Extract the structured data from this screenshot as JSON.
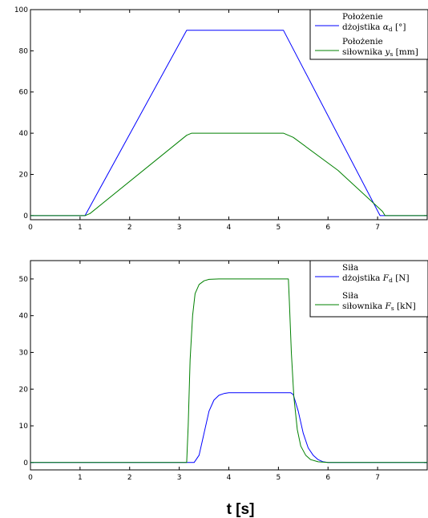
{
  "figure": {
    "xlabel": "t [s]"
  },
  "chart_data": [
    {
      "type": "line",
      "xlim": [
        0,
        8
      ],
      "ylim": [
        -2,
        100
      ],
      "xticks": [
        "0",
        "1",
        "2",
        "3",
        "4",
        "5",
        "6",
        "7"
      ],
      "yticks": [
        "0",
        "20",
        "40",
        "60",
        "80",
        "100"
      ],
      "legend_placement": "top-right",
      "series": [
        {
          "name_line1": "Położenie",
          "name_line2": "dżojstika α_d [°]",
          "color": "#0000ff",
          "x": [
            0,
            1.1,
            3.15,
            5.1,
            7.05,
            7.15,
            8
          ],
          "values": [
            0,
            0,
            90,
            90,
            0,
            0,
            0
          ]
        },
        {
          "name_line1": "Położenie",
          "name_line2": "siłownika y_s [mm]",
          "color": "#008000",
          "x": [
            0,
            1.1,
            1.2,
            3.15,
            3.25,
            5.1,
            5.3,
            6.2,
            7.1,
            7.15,
            8
          ],
          "values": [
            0,
            0,
            1,
            39,
            40,
            40,
            38,
            22,
            2,
            0,
            0
          ]
        }
      ]
    },
    {
      "type": "line",
      "xlim": [
        0,
        8
      ],
      "ylim": [
        -2,
        55
      ],
      "xticks": [
        "0",
        "1",
        "2",
        "3",
        "4",
        "5",
        "6",
        "7"
      ],
      "yticks": [
        "0",
        "10",
        "20",
        "30",
        "40",
        "50"
      ],
      "legend_placement": "top-right",
      "series": [
        {
          "name_line1": "Siła",
          "name_line2": "dżojstika F_d [N]",
          "color": "#0000ff",
          "x": [
            0,
            3.3,
            3.4,
            3.5,
            3.6,
            3.7,
            3.8,
            3.9,
            4.0,
            4.2,
            5.25,
            5.3,
            5.4,
            5.5,
            5.6,
            5.7,
            5.8,
            5.9,
            6.0,
            8
          ],
          "values": [
            0,
            0,
            2,
            8,
            14,
            17,
            18.3,
            18.8,
            19,
            19,
            19,
            18.5,
            14,
            8,
            4,
            2,
            0.8,
            0.2,
            0,
            0
          ]
        },
        {
          "name_line1": "Siła",
          "name_line2": "siłownika F_s [kN]",
          "color": "#008000",
          "x": [
            0,
            3.15,
            3.18,
            3.22,
            3.27,
            3.32,
            3.4,
            3.5,
            3.6,
            3.8,
            5.2,
            5.22,
            5.26,
            5.31,
            5.38,
            5.45,
            5.55,
            5.65,
            5.8,
            6.0,
            8
          ],
          "values": [
            0,
            0,
            10,
            28,
            40,
            46,
            48.5,
            49.5,
            49.9,
            50,
            50,
            44,
            30,
            18,
            9,
            4.5,
            2,
            0.8,
            0.2,
            0,
            0
          ]
        }
      ]
    }
  ]
}
